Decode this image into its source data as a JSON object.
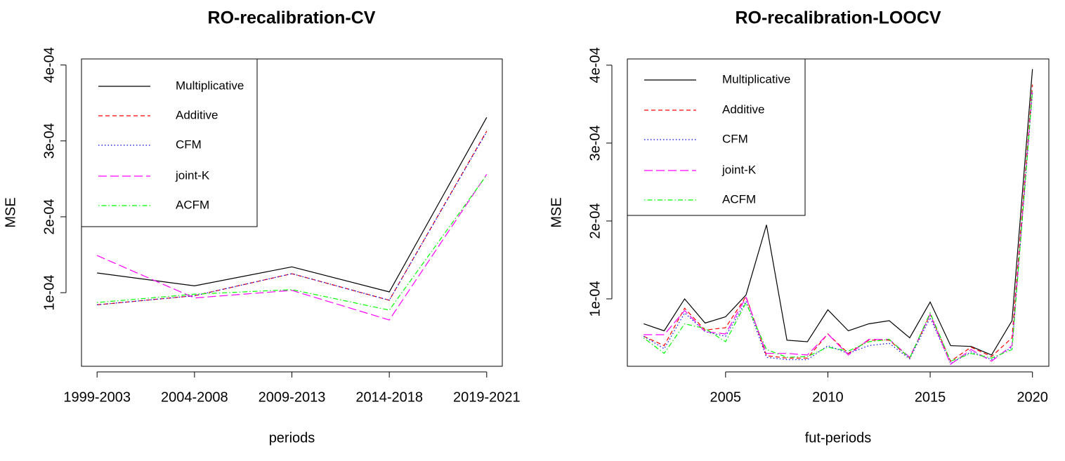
{
  "chart_data": [
    {
      "type": "line",
      "title": "RO-recalibration-CV",
      "x_label": "periods",
      "y_label": "MSE",
      "categories": [
        "1999-2003",
        "2004-2008",
        "2009-2013",
        "2014-2018",
        "2019-2021"
      ],
      "ylim": [
        3e-06,
        0.000408
      ],
      "yticks": [
        {
          "value": 0.0001,
          "label": "1e-04"
        },
        {
          "value": 0.0002,
          "label": "2e-04"
        },
        {
          "value": 0.0003,
          "label": "3e-04"
        },
        {
          "value": 0.0004,
          "label": "4e-04"
        }
      ],
      "legend": "topleft",
      "series": [
        {
          "name": "Multiplicative",
          "color": "#000000",
          "linestyle": "solid",
          "values": [
            0.000126,
            0.000109,
            0.000134,
            0.000101,
            0.000331
          ]
        },
        {
          "name": "Additive",
          "color": "#ff0000",
          "linestyle": "dashed",
          "values": [
            8.4e-05,
            9.6e-05,
            0.000125,
            9e-05,
            0.000313
          ]
        },
        {
          "name": "CFM",
          "color": "#0000ff",
          "linestyle": "dotted",
          "values": [
            8.4e-05,
            9.6e-05,
            0.000125,
            9e-05,
            0.000312
          ]
        },
        {
          "name": "joint-K",
          "color": "#ff00ff",
          "linestyle": "longdash",
          "values": [
            0.000149,
            9.3e-05,
            0.000103,
            6.4e-05,
            0.000256
          ]
        },
        {
          "name": "ACFM",
          "color": "#00ff00",
          "linestyle": "dotdash",
          "values": [
            8.7e-05,
            9.8e-05,
            0.000104,
            7.7e-05,
            0.000255
          ]
        }
      ]
    },
    {
      "type": "line",
      "title": "RO-recalibration-LOOCV",
      "x_label": "fut-periods",
      "y_label": "MSE",
      "x": [
        2001,
        2002,
        2003,
        2004,
        2005,
        2006,
        2007,
        2008,
        2009,
        2010,
        2011,
        2012,
        2013,
        2014,
        2015,
        2016,
        2017,
        2018,
        2019,
        2020
      ],
      "xlim": [
        2000.2,
        2020.8
      ],
      "xticks": [
        2005,
        2010,
        2015,
        2020
      ],
      "ylim": [
        1.35e-05,
        0.000408
      ],
      "yticks": [
        {
          "value": 0.0001,
          "label": "1e-04"
        },
        {
          "value": 0.0002,
          "label": "2e-04"
        },
        {
          "value": 0.0003,
          "label": "3e-04"
        },
        {
          "value": 0.0004,
          "label": "4e-04"
        }
      ],
      "legend": "topleft",
      "series": [
        {
          "name": "Multiplicative",
          "color": "#000000",
          "linestyle": "solid",
          "values": [
            6.8e-05,
            5.9e-05,
            0.0001,
            6.9e-05,
            7.7e-05,
            0.000105,
            0.000195,
            4.7e-05,
            4.5e-05,
            8.6e-05,
            5.9e-05,
            6.8e-05,
            7.2e-05,
            5e-05,
            9.6e-05,
            4e-05,
            3.9e-05,
            2.8e-05,
            7.2e-05,
            0.000395
          ]
        },
        {
          "name": "Additive",
          "color": "#ff0000",
          "linestyle": "dashed",
          "values": [
            5.2e-05,
            4e-05,
            8.8e-05,
            6e-05,
            6.3e-05,
            0.000103,
            2.7e-05,
            2.4e-05,
            2.4e-05,
            5.5e-05,
            3e-05,
            4.7e-05,
            4.7e-05,
            2.4e-05,
            8e-05,
            2e-05,
            3.8e-05,
            2.6e-05,
            5e-05,
            0.000375
          ]
        },
        {
          "name": "CFM",
          "color": "#0000ff",
          "linestyle": "dotted",
          "values": [
            5.2e-05,
            3.6e-05,
            8.2e-05,
            5.8e-05,
            5.2e-05,
            9.7e-05,
            2.5e-05,
            2.2e-05,
            2.2e-05,
            4e-05,
            3e-05,
            4e-05,
            4.3e-05,
            2.3e-05,
            7.6e-05,
            1.7e-05,
            3.2e-05,
            2.2e-05,
            3.8e-05,
            0.000365
          ]
        },
        {
          "name": "joint-K",
          "color": "#ff00ff",
          "linestyle": "longdash",
          "values": [
            5.4e-05,
            5.4e-05,
            8.5e-05,
            5.8e-05,
            5.5e-05,
            0.000102,
            3e-05,
            3e-05,
            2.8e-05,
            5.5e-05,
            2.8e-05,
            4.8e-05,
            4.8e-05,
            2.5e-05,
            8e-05,
            1.6e-05,
            3.5e-05,
            2e-05,
            4e-05,
            0.00037
          ]
        },
        {
          "name": "ACFM",
          "color": "#00ff00",
          "linestyle": "dotdash",
          "values": [
            5e-05,
            3e-05,
            6.8e-05,
            6.2e-05,
            4.5e-05,
            9.5e-05,
            3.5e-05,
            2.5e-05,
            2.6e-05,
            3.8e-05,
            3.3e-05,
            4.5e-05,
            4.8e-05,
            2.4e-05,
            8.2e-05,
            2e-05,
            3e-05,
            2.4e-05,
            3.5e-05,
            0.000368
          ]
        }
      ]
    }
  ]
}
